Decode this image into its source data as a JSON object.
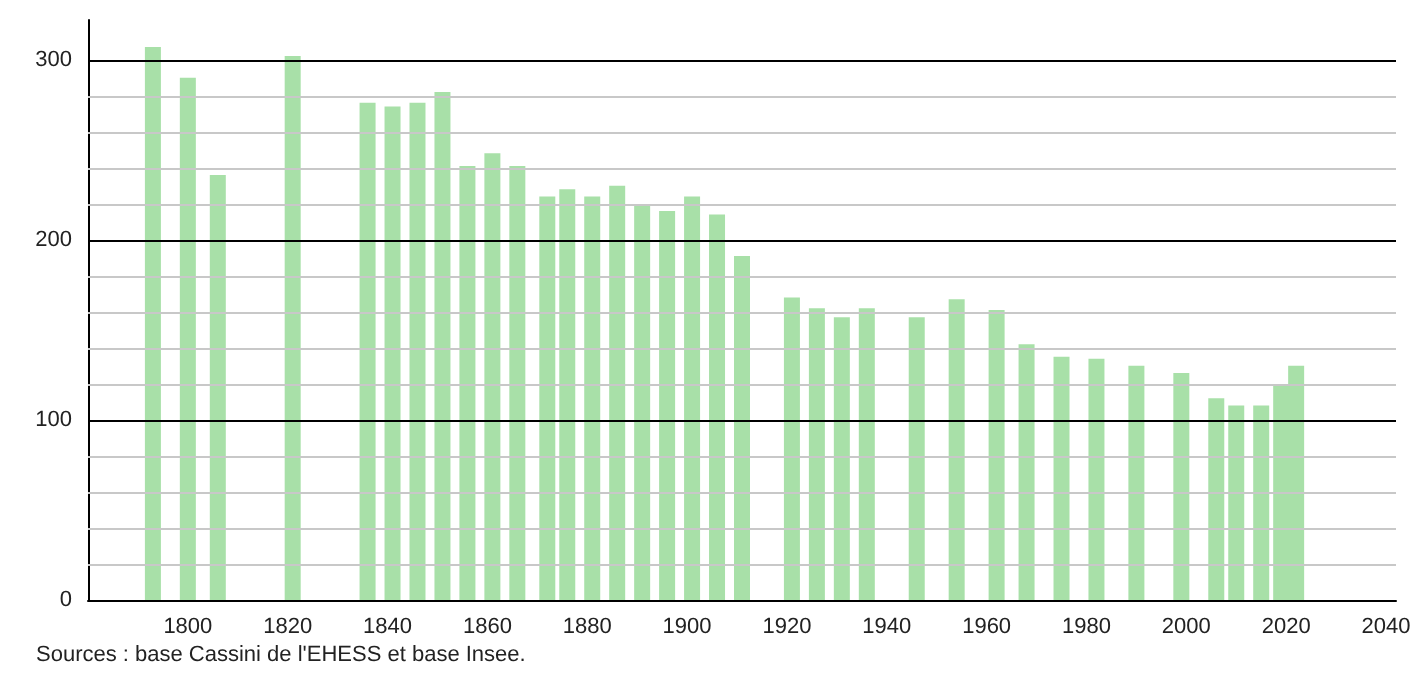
{
  "chart_data": {
    "type": "bar",
    "color": "#a8e0a8",
    "x": [
      1793,
      1800,
      1806,
      1821,
      1836,
      1841,
      1846,
      1851,
      1856,
      1861,
      1866,
      1872,
      1876,
      1881,
      1886,
      1891,
      1896,
      1901,
      1906,
      1911,
      1921,
      1926,
      1931,
      1936,
      1946,
      1954,
      1962,
      1968,
      1975,
      1982,
      1990,
      1999,
      2006,
      2010,
      2015,
      2019,
      2022
    ],
    "values": [
      307,
      290,
      236,
      302,
      276,
      274,
      276,
      282,
      241,
      248,
      241,
      224,
      228,
      224,
      230,
      219,
      216,
      224,
      214,
      191,
      168,
      162,
      157,
      162,
      157,
      167,
      161,
      142,
      135,
      134,
      130,
      126,
      112,
      108,
      108,
      119,
      130
    ],
    "xlim": [
      1780,
      2042
    ],
    "xticks": [
      1800,
      1820,
      1840,
      1860,
      1880,
      1900,
      1920,
      1940,
      1960,
      1980,
      2000,
      2020,
      2040
    ],
    "ylim": [
      0,
      322
    ],
    "yticks": [
      0,
      100,
      200,
      300
    ],
    "grid": "y",
    "annotations": [
      "Sources : base Cassini de l'EHESS et base Insee."
    ]
  }
}
